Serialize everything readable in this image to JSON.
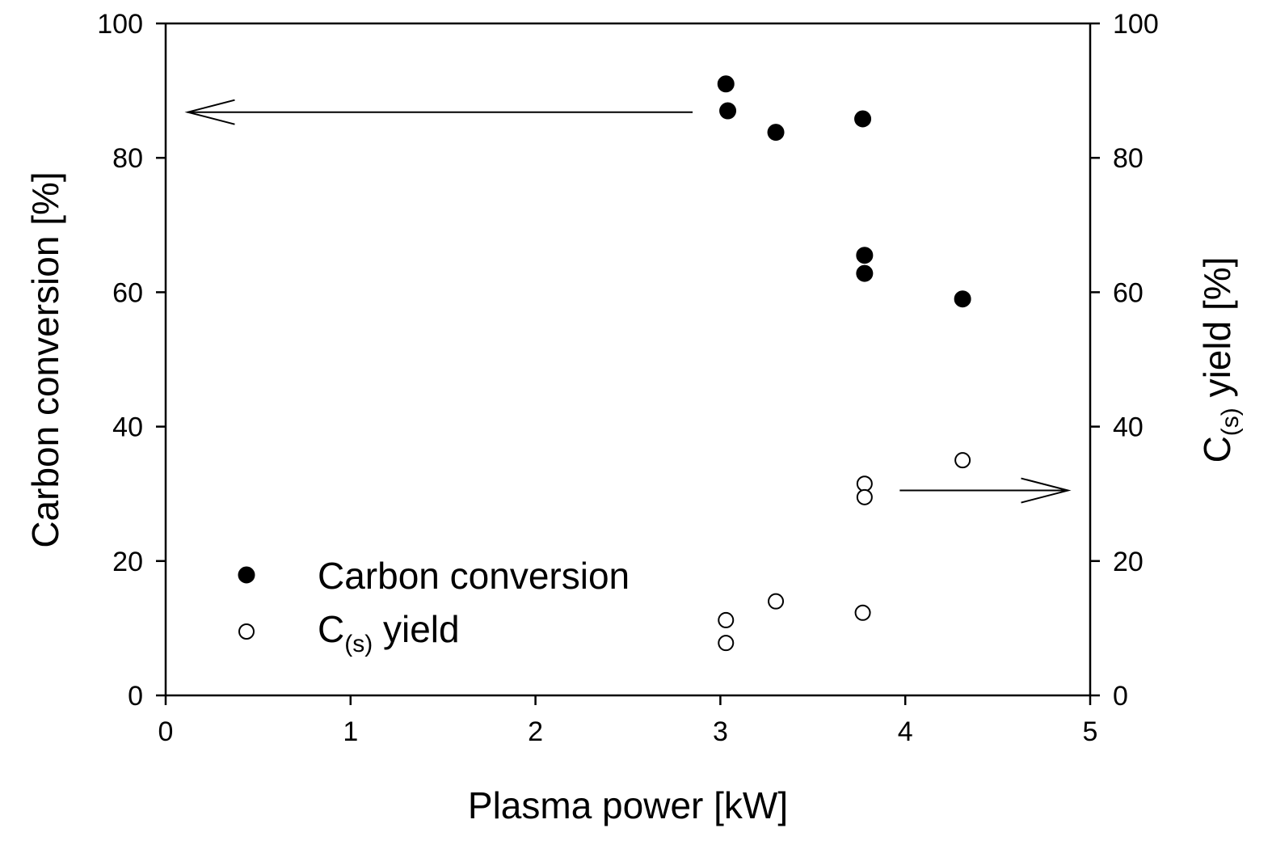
{
  "chart_data": {
    "type": "scatter",
    "title": "",
    "xlabel": "Plasma power [kW]",
    "ylabel_left": "Carbon conversion [%]",
    "ylabel_right": {
      "main": "C",
      "sub": "(s)",
      "rest": " yield [%]"
    },
    "xlim": [
      0,
      5
    ],
    "ylim_left": [
      0,
      100
    ],
    "ylim_right": [
      0,
      100
    ],
    "x_ticks": [
      "0",
      "1",
      "2",
      "3",
      "4",
      "5"
    ],
    "y_ticks_left": [
      "0",
      "20",
      "40",
      "60",
      "80",
      "100"
    ],
    "y_ticks_right": [
      "0",
      "20",
      "40",
      "60",
      "80",
      "100"
    ],
    "grid": false,
    "legend_position": "bottom-left",
    "series": [
      {
        "name": "Carbon conversion",
        "label": {
          "main": "Carbon conversion",
          "sub": "",
          "rest": ""
        },
        "axis": "left",
        "marker": "filled-circle",
        "points": [
          {
            "x": 3.03,
            "y": 91.0
          },
          {
            "x": 3.04,
            "y": 87.0
          },
          {
            "x": 3.3,
            "y": 83.8
          },
          {
            "x": 3.77,
            "y": 85.8
          },
          {
            "x": 3.78,
            "y": 65.5
          },
          {
            "x": 3.78,
            "y": 62.8
          },
          {
            "x": 4.31,
            "y": 59.0
          }
        ]
      },
      {
        "name": "C(s) yield",
        "label": {
          "main": "C",
          "sub": "(s)",
          "rest": " yield"
        },
        "axis": "right",
        "marker": "open-circle",
        "points": [
          {
            "x": 3.03,
            "y": 11.2
          },
          {
            "x": 3.03,
            "y": 7.8
          },
          {
            "x": 3.3,
            "y": 14.0
          },
          {
            "x": 3.77,
            "y": 12.3
          },
          {
            "x": 3.78,
            "y": 31.5
          },
          {
            "x": 3.78,
            "y": 29.5
          },
          {
            "x": 4.31,
            "y": 35.0
          }
        ]
      }
    ],
    "annotations": [
      {
        "type": "arrow",
        "direction": "left",
        "target_axis": "left",
        "from": {
          "x": 2.85,
          "y": 86.8
        },
        "to": {
          "x": 0.12,
          "y": 86.8
        }
      },
      {
        "type": "arrow",
        "direction": "right",
        "target_axis": "right",
        "from": {
          "x": 3.97,
          "y": 30.5
        },
        "to": {
          "x": 4.88,
          "y": 30.5
        }
      }
    ]
  }
}
